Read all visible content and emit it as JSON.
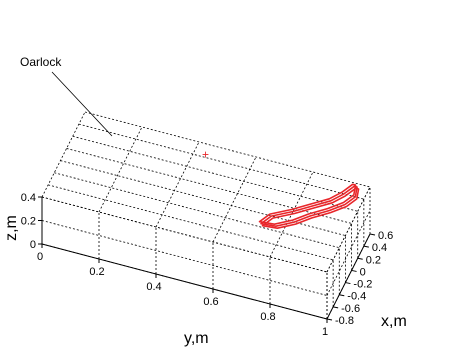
{
  "chart_data": {
    "type": "line",
    "projection": "3d",
    "grid": true,
    "xlabel": "x,m",
    "ylabel": "y,m",
    "zlabel": "z,m",
    "xlim": [
      -0.8,
      0.6
    ],
    "ylim": [
      0,
      1
    ],
    "zlim": [
      0,
      0.4
    ],
    "x_ticks": [
      "-0.8",
      "-0.6",
      "-0.4",
      "-0.2",
      "0",
      "0.2",
      "0.4",
      "0.6"
    ],
    "y_ticks": [
      "0",
      "0.2",
      "0.4",
      "0.6",
      "0.8",
      "1"
    ],
    "z_ticks": [
      "0",
      "0.2",
      "0.4"
    ],
    "line_color": "#e8262a",
    "annotations": [
      {
        "text": "Oarlock",
        "x": 0.44,
        "y": 0.44,
        "z": 0.4,
        "marker": "+"
      }
    ],
    "series": [
      {
        "closed": true,
        "points": [
          {
            "x": 0.55,
            "y": 0.95,
            "z": 0.4
          },
          {
            "x": 0.4,
            "y": 0.93,
            "z": 0.4
          },
          {
            "x": 0.25,
            "y": 0.9,
            "z": 0.4
          },
          {
            "x": 0.1,
            "y": 0.85,
            "z": 0.4
          },
          {
            "x": -0.05,
            "y": 0.8,
            "z": 0.4
          },
          {
            "x": -0.2,
            "y": 0.74,
            "z": 0.4
          },
          {
            "x": -0.35,
            "y": 0.72,
            "z": 0.4
          },
          {
            "x": -0.33,
            "y": 0.77,
            "z": 0.4
          },
          {
            "x": -0.2,
            "y": 0.82,
            "z": 0.4
          },
          {
            "x": -0.05,
            "y": 0.86,
            "z": 0.4
          },
          {
            "x": 0.1,
            "y": 0.91,
            "z": 0.4
          },
          {
            "x": 0.25,
            "y": 0.95,
            "z": 0.4
          },
          {
            "x": 0.4,
            "y": 0.97,
            "z": 0.4
          },
          {
            "x": 0.55,
            "y": 0.96,
            "z": 0.4
          }
        ]
      }
    ]
  }
}
